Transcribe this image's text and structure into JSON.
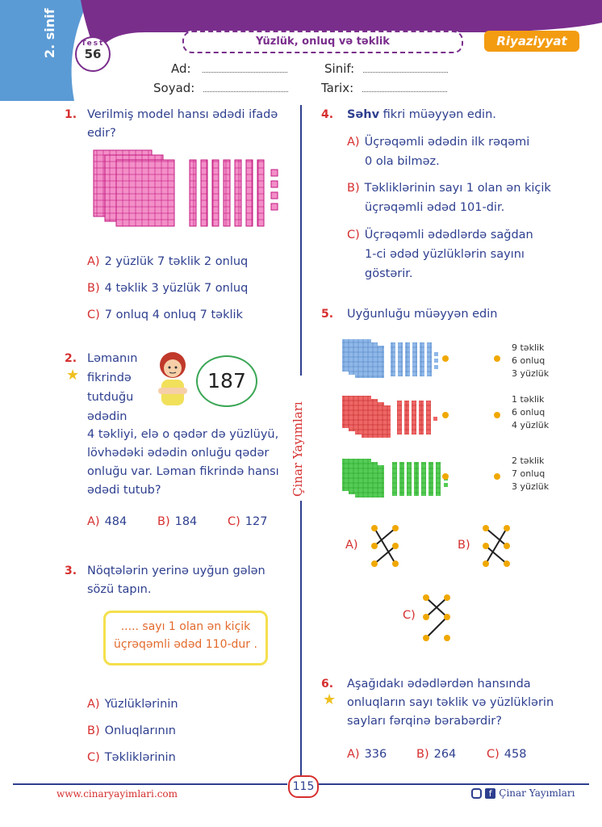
{
  "header": {
    "grade": "2. sinif",
    "test_word": "Test",
    "test_number": "56",
    "topic": "Yüzlük, onluq və təklik",
    "subject": "Riyaziyyat",
    "colors": {
      "purple": "#7a2e8c",
      "blue": "#5b9bd5",
      "orange": "#f39c12"
    }
  },
  "form": {
    "name_label": "Ad:",
    "surname_label": "Soyad:",
    "class_label": "Sinif:",
    "date_label": "Tarix:"
  },
  "q1": {
    "num": "1.",
    "text": "Verilmiş model hansı ədədi ifadə edir?",
    "options": [
      {
        "letter": "A)",
        "text": "2 yüzlük 7 təklik 2 onluq"
      },
      {
        "letter": "B)",
        "text": "4 təklik 3 yüzlük 7 onluq"
      },
      {
        "letter": "C)",
        "text": "7 onluq 4 onluq 7 təklik"
      }
    ]
  },
  "q2": {
    "num": "2.",
    "line1": "Ləmanın",
    "line2": "fikrində",
    "line3": "tutduğu",
    "line4": "ədədin",
    "bubble_number": "187",
    "rest": [
      "4 təkliyi, elə o qədər də yüzlüyü,",
      "lövhədəki ədədin onluğu qədər",
      "onluğu var. Ləman fikrində hansı",
      "ədədi tutub?"
    ],
    "options": [
      {
        "letter": "A)",
        "text": "484"
      },
      {
        "letter": "B)",
        "text": "184"
      },
      {
        "letter": "C)",
        "text": "127"
      }
    ]
  },
  "q3": {
    "num": "3.",
    "text1": "Nöqtələrin yerinə uyğun gələn",
    "text2": "sözü tapın.",
    "box1": "..... sayı 1 olan ən kiçik",
    "box2": "üçrəqəmli ədəd 110-dur .",
    "options": [
      {
        "letter": "A)",
        "text": "Yüzlüklərinin"
      },
      {
        "letter": "B)",
        "text": "Onluqlarının"
      },
      {
        "letter": "C)",
        "text": "Təkliklərinin"
      }
    ]
  },
  "q4": {
    "num": "4.",
    "bold": "Səhv",
    "text": " fikri müəyyən edin.",
    "options": [
      {
        "letter": "A)",
        "lines": [
          "Üçrəqəmli ədədin ilk rəqəmi",
          "0 ola bilməz."
        ]
      },
      {
        "letter": "B)",
        "lines": [
          "Təkliklərinin sayı 1 olan ən kiçik",
          "üçrəqəmli ədəd 101-dir."
        ]
      },
      {
        "letter": "C)",
        "lines": [
          "Üçrəqəmli ədədlərdə sağdan",
          "1-ci ədəd yüzlüklərin sayını",
          "göstərir."
        ]
      }
    ]
  },
  "q5": {
    "num": "5.",
    "text": "Uyğunluğu müəyyən edin",
    "labels": [
      [
        "9 təklik",
        "6 onluq",
        "3 yüzlük"
      ],
      [
        "1 təklik",
        "6 onluq",
        "4 yüzlük"
      ],
      [
        "2 təklik",
        "7 onluq",
        "3 yüzlük"
      ]
    ],
    "options": [
      "A)",
      "B)",
      "C)"
    ]
  },
  "q6": {
    "num": "6.",
    "lines": [
      "Aşağıdakı ədədlərdən hansında",
      "onluqların sayı təklik və yüzlüklərin",
      "sayları fərqinə bərabərdir?"
    ],
    "options": [
      {
        "letter": "A)",
        "text": "336"
      },
      {
        "letter": "B)",
        "text": "264"
      },
      {
        "letter": "C)",
        "text": "458"
      }
    ]
  },
  "publisher_vertical": "Çinar Yayımları",
  "footer": {
    "website": "www.cinaryayimlari.com",
    "page": "115",
    "publisher": "Çinar Yayımları"
  }
}
